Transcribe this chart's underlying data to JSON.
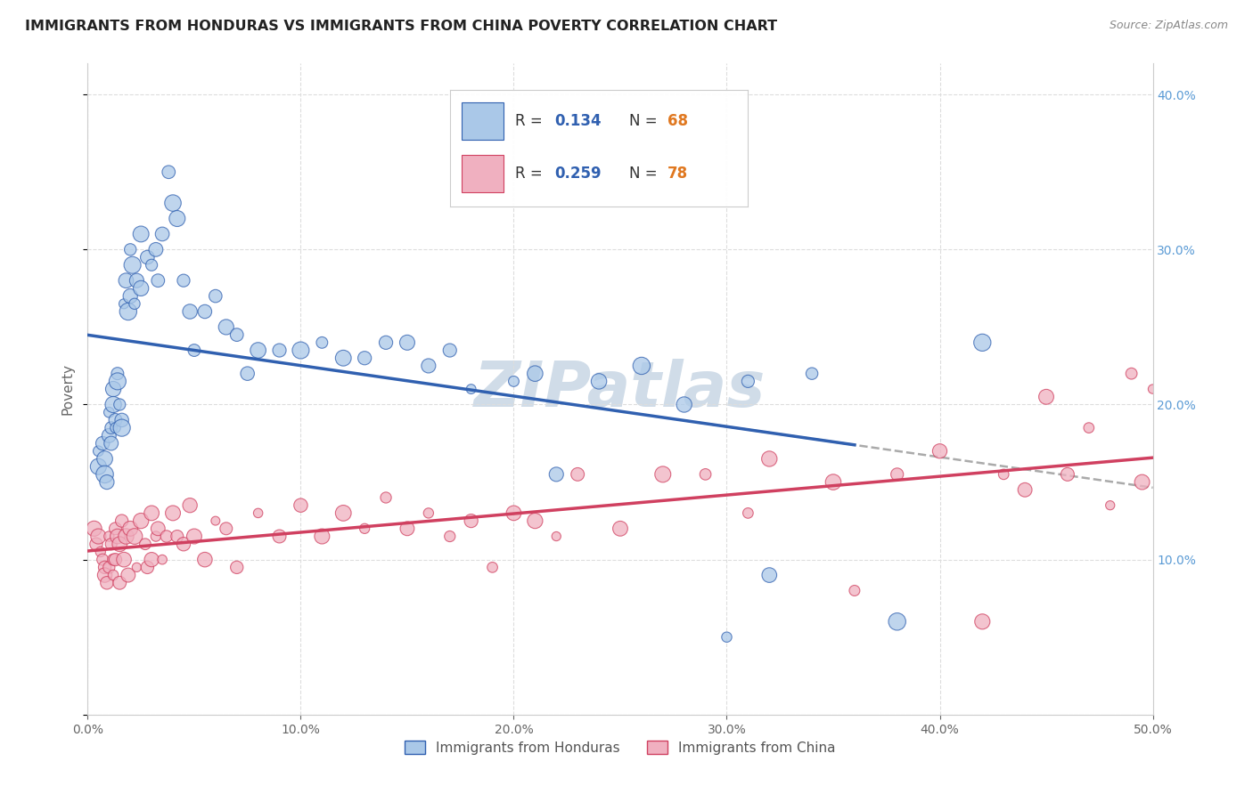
{
  "title": "IMMIGRANTS FROM HONDURAS VS IMMIGRANTS FROM CHINA POVERTY CORRELATION CHART",
  "source": "Source: ZipAtlas.com",
  "ylabel": "Poverty",
  "xlim": [
    0.0,
    0.5
  ],
  "ylim": [
    0.0,
    0.42
  ],
  "xticks": [
    0.0,
    0.1,
    0.2,
    0.3,
    0.4,
    0.5
  ],
  "yticks": [
    0.0,
    0.1,
    0.2,
    0.3,
    0.4
  ],
  "xtick_labels": [
    "0.0%",
    "10.0%",
    "20.0%",
    "30.0%",
    "40.0%",
    "50.0%"
  ],
  "right_ytick_labels": [
    "",
    "10.0%",
    "20.0%",
    "30.0%",
    "40.0%"
  ],
  "color_honduras": "#aac8e8",
  "color_china": "#f0b0c0",
  "line_color_honduras": "#3060b0",
  "line_color_china": "#d04060",
  "legend_label_honduras": "Immigrants from Honduras",
  "legend_label_china": "Immigrants from China",
  "R_honduras": 0.134,
  "N_honduras": 68,
  "R_china": 0.259,
  "N_china": 78,
  "watermark": "ZIPatlas",
  "honduras_x": [
    0.005,
    0.005,
    0.007,
    0.008,
    0.008,
    0.009,
    0.01,
    0.01,
    0.011,
    0.011,
    0.012,
    0.012,
    0.013,
    0.013,
    0.014,
    0.014,
    0.015,
    0.016,
    0.016,
    0.017,
    0.018,
    0.019,
    0.02,
    0.02,
    0.021,
    0.022,
    0.023,
    0.025,
    0.025,
    0.028,
    0.03,
    0.032,
    0.033,
    0.035,
    0.038,
    0.04,
    0.042,
    0.045,
    0.048,
    0.05,
    0.055,
    0.06,
    0.065,
    0.07,
    0.075,
    0.08,
    0.09,
    0.1,
    0.11,
    0.12,
    0.13,
    0.14,
    0.15,
    0.16,
    0.17,
    0.18,
    0.2,
    0.21,
    0.22,
    0.24,
    0.26,
    0.28,
    0.3,
    0.31,
    0.32,
    0.34,
    0.38,
    0.42
  ],
  "honduras_y": [
    0.17,
    0.16,
    0.175,
    0.165,
    0.155,
    0.15,
    0.18,
    0.195,
    0.185,
    0.175,
    0.21,
    0.2,
    0.19,
    0.185,
    0.22,
    0.215,
    0.2,
    0.19,
    0.185,
    0.265,
    0.28,
    0.26,
    0.3,
    0.27,
    0.29,
    0.265,
    0.28,
    0.31,
    0.275,
    0.295,
    0.29,
    0.3,
    0.28,
    0.31,
    0.35,
    0.33,
    0.32,
    0.28,
    0.26,
    0.235,
    0.26,
    0.27,
    0.25,
    0.245,
    0.22,
    0.235,
    0.235,
    0.235,
    0.24,
    0.23,
    0.23,
    0.24,
    0.24,
    0.225,
    0.235,
    0.21,
    0.215,
    0.22,
    0.155,
    0.215,
    0.225,
    0.2,
    0.05,
    0.215,
    0.09,
    0.22,
    0.06,
    0.24
  ],
  "china_x": [
    0.003,
    0.004,
    0.005,
    0.006,
    0.007,
    0.008,
    0.008,
    0.009,
    0.01,
    0.01,
    0.011,
    0.012,
    0.012,
    0.013,
    0.013,
    0.014,
    0.015,
    0.015,
    0.016,
    0.017,
    0.018,
    0.019,
    0.02,
    0.022,
    0.023,
    0.025,
    0.027,
    0.028,
    0.03,
    0.03,
    0.032,
    0.033,
    0.035,
    0.037,
    0.04,
    0.042,
    0.045,
    0.048,
    0.05,
    0.055,
    0.06,
    0.065,
    0.07,
    0.08,
    0.09,
    0.1,
    0.11,
    0.12,
    0.13,
    0.14,
    0.15,
    0.16,
    0.17,
    0.18,
    0.19,
    0.2,
    0.21,
    0.22,
    0.23,
    0.25,
    0.27,
    0.29,
    0.31,
    0.32,
    0.35,
    0.36,
    0.38,
    0.4,
    0.42,
    0.43,
    0.44,
    0.45,
    0.46,
    0.47,
    0.48,
    0.49,
    0.495,
    0.5
  ],
  "china_y": [
    0.12,
    0.11,
    0.115,
    0.105,
    0.1,
    0.095,
    0.09,
    0.085,
    0.115,
    0.095,
    0.11,
    0.1,
    0.09,
    0.12,
    0.1,
    0.115,
    0.11,
    0.085,
    0.125,
    0.1,
    0.115,
    0.09,
    0.12,
    0.115,
    0.095,
    0.125,
    0.11,
    0.095,
    0.13,
    0.1,
    0.115,
    0.12,
    0.1,
    0.115,
    0.13,
    0.115,
    0.11,
    0.135,
    0.115,
    0.1,
    0.125,
    0.12,
    0.095,
    0.13,
    0.115,
    0.135,
    0.115,
    0.13,
    0.12,
    0.14,
    0.12,
    0.13,
    0.115,
    0.125,
    0.095,
    0.13,
    0.125,
    0.115,
    0.155,
    0.12,
    0.155,
    0.155,
    0.13,
    0.165,
    0.15,
    0.08,
    0.155,
    0.17,
    0.06,
    0.155,
    0.145,
    0.205,
    0.155,
    0.185,
    0.135,
    0.22,
    0.15,
    0.21
  ],
  "background_color": "#ffffff",
  "grid_color": "#dddddd",
  "title_fontsize": 11.5,
  "axis_label_fontsize": 11,
  "tick_fontsize": 10,
  "watermark_fontsize": 52,
  "watermark_color": "#d0dce8",
  "right_ytick_color": "#5b9bd5"
}
